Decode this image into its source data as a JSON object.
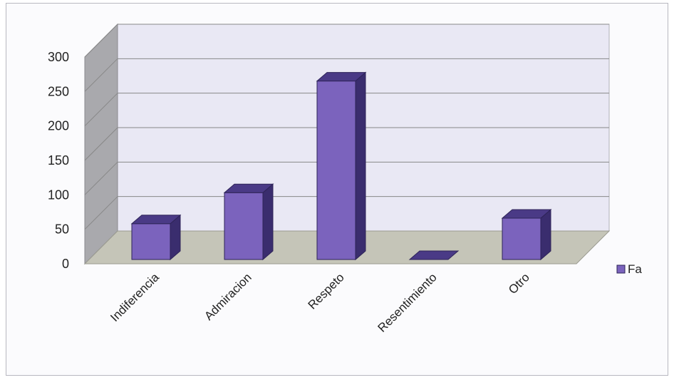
{
  "chart_data": {
    "type": "bar",
    "title": "",
    "xlabel": "",
    "ylabel": "",
    "categories": [
      "Indiferencia",
      "Admiracion",
      "Respeto",
      "Resentimiento",
      "Otro"
    ],
    "series": [
      {
        "name": "Fa",
        "values": [
          52,
          97,
          259,
          0,
          60
        ]
      }
    ],
    "ylim": [
      0,
      300
    ],
    "yticks": [
      "0",
      "50",
      "100",
      "150",
      "200",
      "250",
      "300"
    ],
    "grid": true,
    "three_d": true,
    "legend_position": "right",
    "colors": {
      "bar_front": "#7b63bd",
      "bar_top": "#4a3a86",
      "bar_side": "#3a2d6e",
      "back_wall": "#e9e8f4",
      "side_wall": "#a9a9ad",
      "floor": "#c5c5b8",
      "grid": "#888888"
    }
  }
}
